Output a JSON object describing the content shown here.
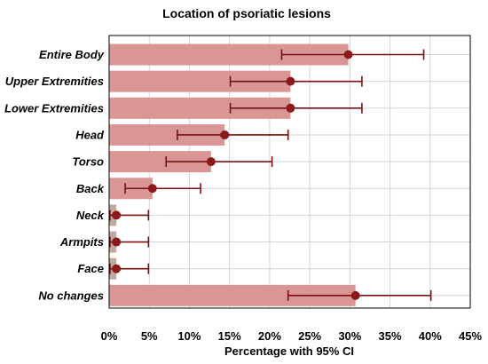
{
  "chart_data": {
    "type": "bar",
    "orientation": "horizontal",
    "title": "Location of psoriatic lesions",
    "xlabel": "Percentage with 95% CI",
    "ylabel": "",
    "xlim": [
      0,
      45
    ],
    "xticks": [
      0,
      5,
      10,
      15,
      20,
      25,
      30,
      35,
      40,
      45
    ],
    "tick_format": "%",
    "grid": true,
    "categories": [
      "Entire Body",
      "Upper Extremities",
      "Lower Extremities",
      "Head",
      "Torso",
      "Back",
      "Neck",
      "Armpits",
      "Face",
      "No changes"
    ],
    "values": [
      29.8,
      22.6,
      22.6,
      14.4,
      12.7,
      5.4,
      0.9,
      0.9,
      0.9,
      30.7
    ],
    "ci_low": [
      21.5,
      15.1,
      15.1,
      8.5,
      7.1,
      2.0,
      0.1,
      0.1,
      0.1,
      22.3
    ],
    "ci_high": [
      39.2,
      31.5,
      31.5,
      22.3,
      20.3,
      11.4,
      4.9,
      4.9,
      4.9,
      40.1
    ],
    "colors": {
      "bar": "#d99694",
      "bar_small": "#c0a99f",
      "point": "#8b1a1a",
      "errorbar": "#7a1010"
    }
  }
}
